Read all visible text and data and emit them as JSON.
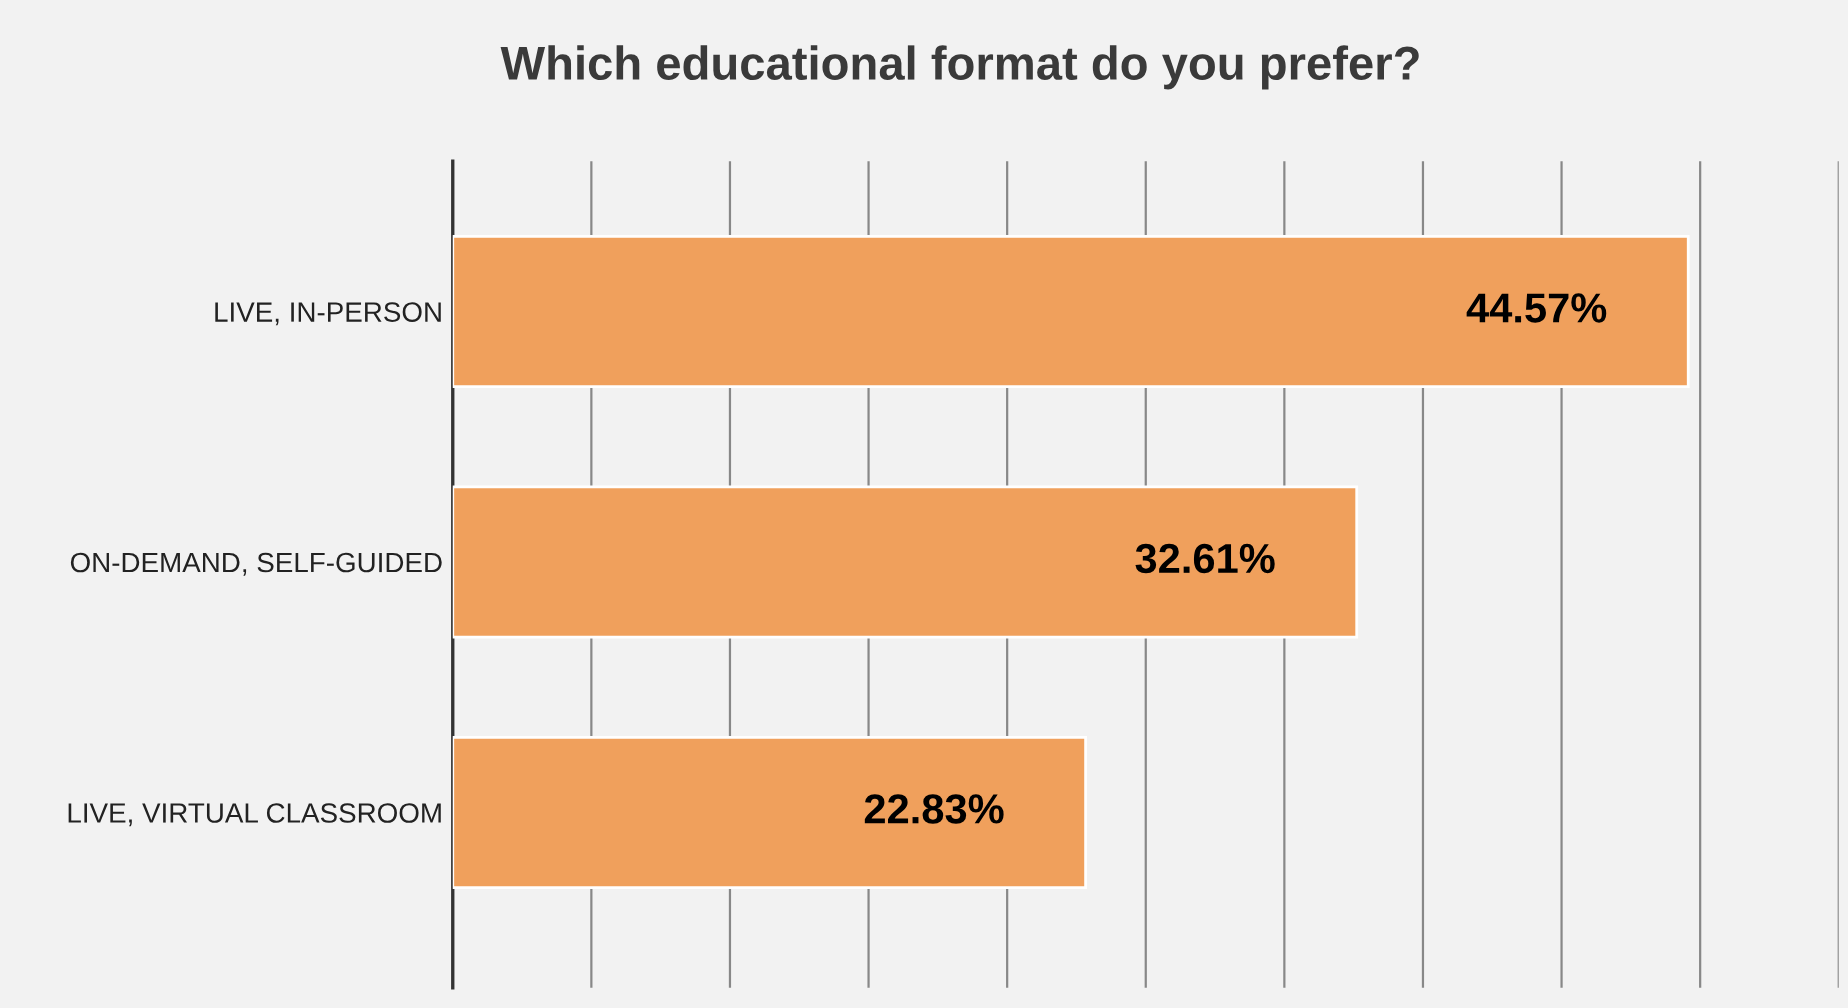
{
  "chart_data": {
    "type": "bar",
    "orientation": "horizontal",
    "title": "Which educational format do you prefer?",
    "categories": [
      "LIVE, IN-PERSON",
      "ON-DEMAND, SELF-GUIDED",
      "LIVE, VIRTUAL CLASSROOM"
    ],
    "values": [
      44.57,
      32.61,
      22.83
    ],
    "color": "#f0a05c",
    "value_labels": [
      "44.57%",
      "32.61%",
      "22.83%"
    ],
    "xlim": [
      0,
      50
    ],
    "xticks": [
      {
        "value": 0,
        "label": null
      },
      {
        "value": 5,
        "label": null
      },
      {
        "value": 10,
        "label": null
      },
      {
        "value": 15,
        "label": null
      },
      {
        "value": 20,
        "label": null
      },
      {
        "value": 25,
        "label": null
      },
      {
        "value": 30,
        "label": null
      },
      {
        "value": 35,
        "label": null
      },
      {
        "value": 40,
        "label": null
      },
      {
        "value": 45,
        "label": null
      },
      {
        "value": 50,
        "label": null
      }
    ],
    "grid": "x",
    "tick_labels": "y"
  }
}
